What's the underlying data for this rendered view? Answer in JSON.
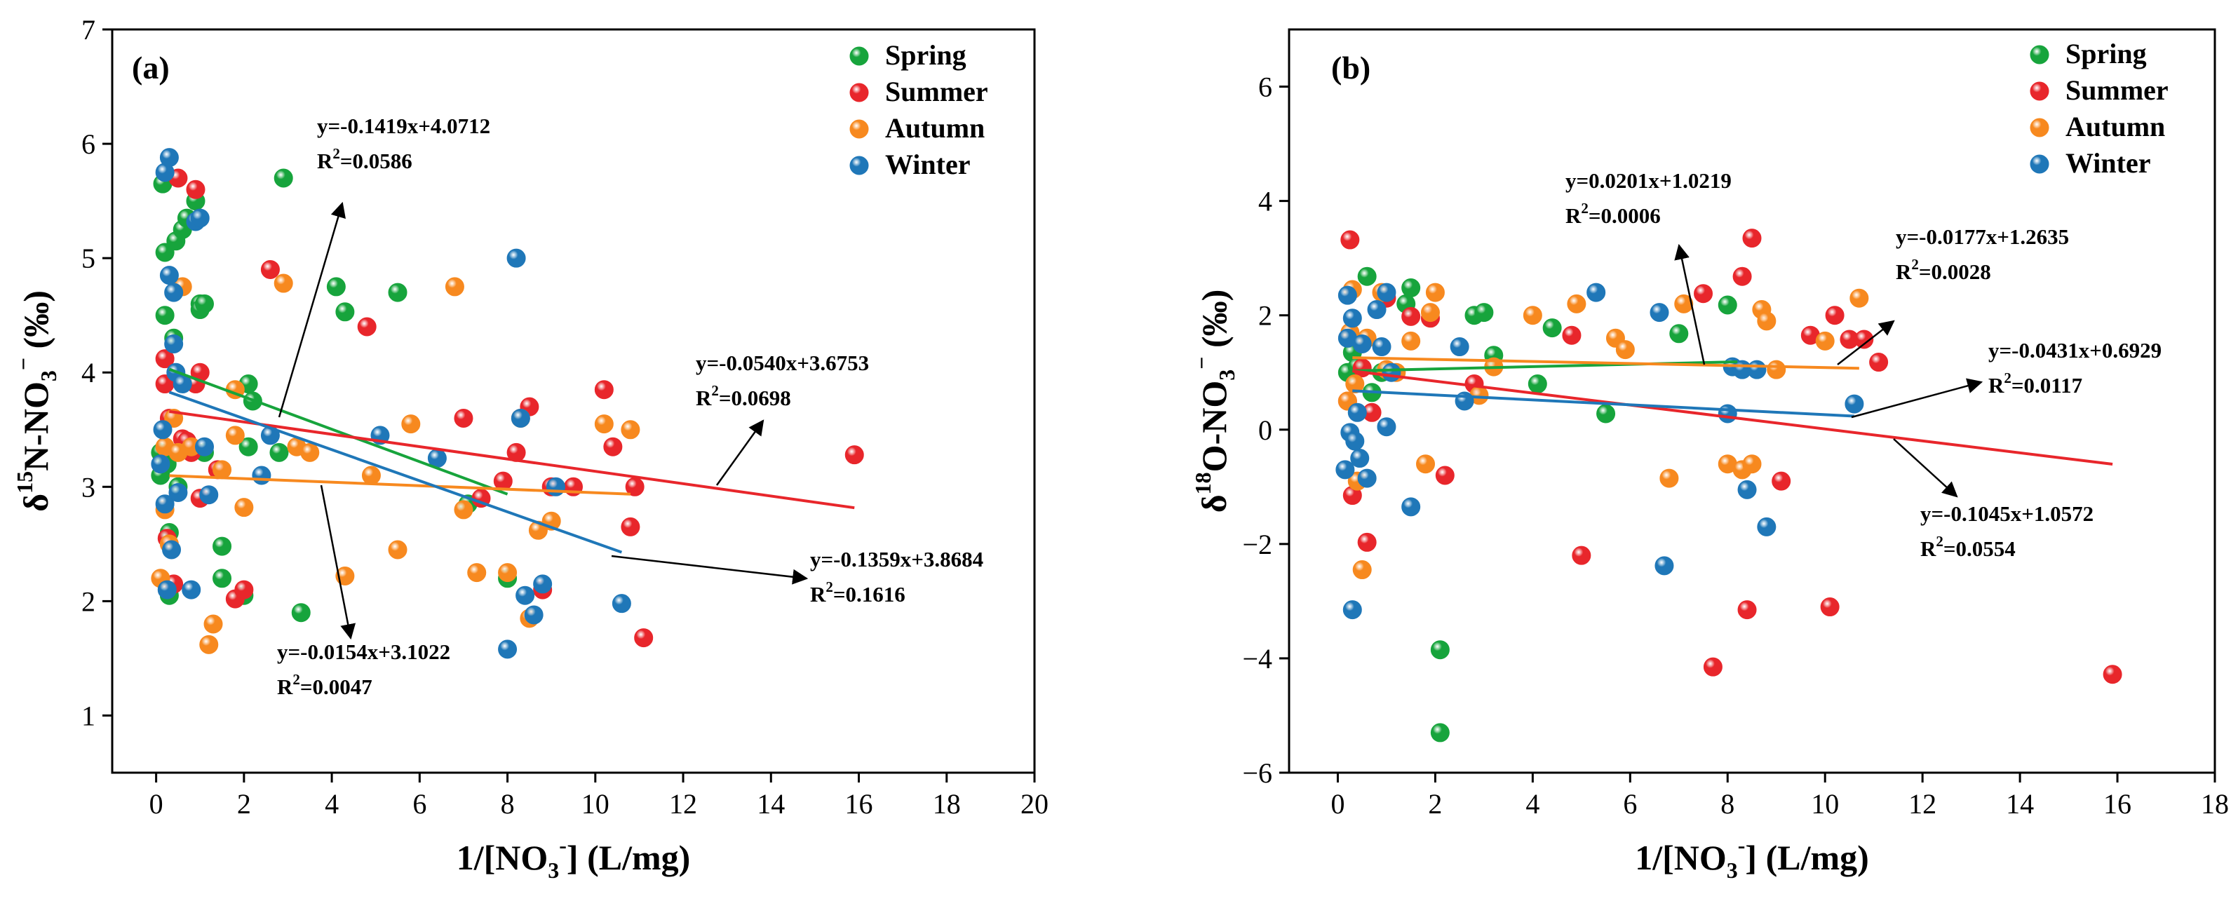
{
  "figure": {
    "title": ""
  },
  "chart_data": [
    {
      "type": "scatter",
      "panel_label": "(a)",
      "xlabel": {
        "prefix": "1/[NO",
        "sub": "3",
        "sup": "-",
        "suffix": "] (L/mg)"
      },
      "ylabel": {
        "delta": "δ",
        "sup": "15",
        "rest": "N-NO",
        "sub": "3",
        "sup2": "−",
        "unit": " (‰)"
      },
      "xlim": [
        -1,
        20
      ],
      "ylim": [
        0.5,
        7
      ],
      "xticks": [
        0,
        2,
        4,
        6,
        8,
        10,
        12,
        14,
        16,
        18,
        20
      ],
      "yticks": [
        1,
        2,
        3,
        4,
        5,
        6,
        7
      ],
      "legend": {
        "position": "top-right",
        "entries": [
          {
            "name": "Spring",
            "color": "#17a43c"
          },
          {
            "name": "Summer",
            "color": "#e8262b"
          },
          {
            "name": "Autumn",
            "color": "#f7891f"
          },
          {
            "name": "Winter",
            "color": "#1f77b8"
          }
        ]
      },
      "series": [
        {
          "name": "Spring",
          "color": "#17a43c",
          "x": [
            0.1,
            0.1,
            0.15,
            0.2,
            0.2,
            0.25,
            0.3,
            0.3,
            0.4,
            0.45,
            0.5,
            0.6,
            0.7,
            0.9,
            1.0,
            1.0,
            1.1,
            1.1,
            1.5,
            1.5,
            2.0,
            2.1,
            2.1,
            2.2,
            2.8,
            2.9,
            3.3,
            4.1,
            4.3,
            5.5,
            7.1,
            8.0
          ],
          "y": [
            3.3,
            3.1,
            5.65,
            4.5,
            5.05,
            3.2,
            2.6,
            2.05,
            4.3,
            5.15,
            3.0,
            5.25,
            5.35,
            5.5,
            4.6,
            4.55,
            4.6,
            3.3,
            2.2,
            2.48,
            2.05,
            3.35,
            3.9,
            3.75,
            3.3,
            5.7,
            1.9,
            4.75,
            4.53,
            4.7,
            2.85,
            2.2
          ],
          "trendline": {
            "x": [
              0.3,
              8.0
            ],
            "equation": "y=-0.1419x+4.0712",
            "r2": "0.0586"
          }
        },
        {
          "name": "Summer",
          "color": "#e8262b",
          "x": [
            0.2,
            0.2,
            0.25,
            0.3,
            0.4,
            0.5,
            0.6,
            0.7,
            0.8,
            0.9,
            0.9,
            1.0,
            1.0,
            1.4,
            1.8,
            2.0,
            2.6,
            4.8,
            7.0,
            7.4,
            7.9,
            8.2,
            8.5,
            8.8,
            9.0,
            9.5,
            10.2,
            10.4,
            10.8,
            10.9,
            11.1,
            15.9
          ],
          "y": [
            4.12,
            3.9,
            2.55,
            3.6,
            2.15,
            5.7,
            3.42,
            3.4,
            3.3,
            5.6,
            3.9,
            4.0,
            2.9,
            3.15,
            2.02,
            2.1,
            4.9,
            4.4,
            3.6,
            2.9,
            3.05,
            3.3,
            3.7,
            2.1,
            3.0,
            3.0,
            3.85,
            3.35,
            2.65,
            3.0,
            1.68,
            3.28
          ],
          "trendline": {
            "x": [
              0.3,
              15.9
            ],
            "equation": "y=-0.0540x+3.6753",
            "r2": "0.0698"
          }
        },
        {
          "name": "Autumn",
          "color": "#f7891f",
          "x": [
            0.1,
            0.2,
            0.2,
            0.3,
            0.4,
            0.5,
            0.6,
            0.8,
            1.2,
            1.3,
            1.5,
            1.8,
            1.8,
            2.0,
            2.9,
            3.2,
            3.5,
            4.3,
            4.9,
            5.5,
            5.8,
            6.8,
            7.0,
            7.3,
            8.0,
            8.3,
            8.5,
            8.7,
            9.0,
            10.2,
            10.8
          ],
          "y": [
            2.2,
            2.8,
            3.35,
            2.5,
            3.6,
            3.3,
            4.75,
            3.35,
            1.62,
            1.8,
            3.15,
            3.45,
            3.85,
            2.82,
            4.78,
            3.35,
            3.3,
            2.22,
            3.1,
            2.45,
            3.55,
            4.75,
            2.8,
            2.25,
            2.25,
            3.6,
            1.85,
            2.62,
            2.7,
            3.55,
            3.5
          ],
          "trendline": {
            "x": [
              0.3,
              10.8
            ],
            "equation": "y=-0.0154x+3.1022",
            "r2": "0.0047"
          }
        },
        {
          "name": "Winter",
          "color": "#1f77b8",
          "x": [
            0.1,
            0.15,
            0.2,
            0.2,
            0.25,
            0.3,
            0.3,
            0.35,
            0.4,
            0.4,
            0.45,
            0.5,
            0.6,
            0.8,
            0.9,
            1.0,
            1.1,
            1.2,
            2.4,
            2.6,
            5.1,
            6.4,
            8.0,
            8.2,
            8.3,
            8.4,
            8.6,
            8.8,
            9.1,
            10.6
          ],
          "y": [
            3.2,
            3.5,
            5.75,
            2.85,
            2.1,
            5.88,
            4.85,
            2.45,
            4.25,
            4.7,
            4.0,
            2.95,
            3.9,
            2.1,
            5.32,
            5.35,
            3.35,
            2.93,
            3.1,
            3.45,
            3.45,
            3.25,
            1.58,
            5.0,
            3.6,
            2.05,
            1.88,
            2.15,
            3.0,
            1.98
          ],
          "trendline": {
            "x": [
              0.3,
              10.6
            ],
            "equation": "y=-0.1359x+3.8684",
            "r2": "0.1616"
          }
        }
      ]
    },
    {
      "type": "scatter",
      "panel_label": "(b)",
      "xlabel": {
        "prefix": "1/[NO",
        "sub": "3",
        "sup": "-",
        "suffix": "] (L/mg)"
      },
      "ylabel": {
        "delta": "δ",
        "sup": "18",
        "rest": "O-NO",
        "sub": "3",
        "sup2": "−",
        "unit": " (‰)"
      },
      "xlim": [
        -1,
        18
      ],
      "ylim": [
        -6,
        7
      ],
      "xticks": [
        0,
        2,
        4,
        6,
        8,
        10,
        12,
        14,
        16,
        18
      ],
      "yticks": [
        -6,
        -4,
        -2,
        0,
        2,
        4,
        6
      ],
      "legend": {
        "position": "top-right",
        "entries": [
          {
            "name": "Spring",
            "color": "#17a43c"
          },
          {
            "name": "Summer",
            "color": "#e8262b"
          },
          {
            "name": "Autumn",
            "color": "#f7891f"
          },
          {
            "name": "Winter",
            "color": "#1f77b8"
          }
        ]
      },
      "series": [
        {
          "name": "Spring",
          "color": "#17a43c",
          "x": [
            0.2,
            0.3,
            0.4,
            0.6,
            0.7,
            0.9,
            1.4,
            1.5,
            2.1,
            2.1,
            2.8,
            3.0,
            3.2,
            4.1,
            4.4,
            5.5,
            7.0,
            8.0
          ],
          "y": [
            1.0,
            1.35,
            1.1,
            2.68,
            0.65,
            1.0,
            2.2,
            2.48,
            -3.85,
            -5.3,
            2.0,
            2.05,
            1.3,
            0.8,
            1.78,
            0.28,
            1.68,
            2.18
          ],
          "trendline": {
            "x": [
              0.3,
              8.2
            ],
            "equation": "y=0.0201x+1.0219",
            "r2": "0.0006"
          }
        },
        {
          "name": "Summer",
          "color": "#e8262b",
          "x": [
            0.2,
            0.25,
            0.3,
            0.5,
            0.6,
            0.7,
            1.0,
            1.5,
            1.9,
            2.2,
            2.8,
            4.8,
            5.0,
            7.5,
            7.7,
            8.3,
            8.4,
            8.5,
            9.1,
            9.7,
            10.1,
            10.2,
            10.5,
            10.8,
            11.1,
            15.9
          ],
          "y": [
            0.5,
            3.32,
            -1.15,
            1.08,
            -1.97,
            0.3,
            2.3,
            1.98,
            1.95,
            -0.8,
            0.8,
            1.65,
            -2.2,
            2.38,
            -4.15,
            2.68,
            -3.15,
            3.35,
            -0.9,
            1.65,
            -3.1,
            2.0,
            1.58,
            1.58,
            1.18,
            -4.28
          ],
          "trendline": {
            "x": [
              0.3,
              15.9
            ],
            "equation": "y=-0.1045x+1.0572",
            "r2": "0.0554"
          }
        },
        {
          "name": "Autumn",
          "color": "#f7891f",
          "x": [
            0.2,
            0.25,
            0.3,
            0.35,
            0.4,
            0.5,
            0.6,
            0.9,
            1.0,
            1.2,
            1.5,
            1.8,
            1.9,
            2.0,
            2.9,
            3.2,
            4.0,
            4.9,
            5.7,
            5.9,
            6.8,
            7.1,
            8.0,
            8.3,
            8.5,
            8.7,
            8.8,
            9.0,
            10.0,
            10.7
          ],
          "y": [
            0.5,
            1.7,
            2.45,
            0.8,
            -0.9,
            -2.45,
            1.6,
            2.4,
            1.05,
            1.0,
            1.55,
            -0.6,
            2.05,
            2.4,
            0.6,
            1.1,
            2.0,
            2.2,
            1.6,
            1.4,
            -0.85,
            2.2,
            -0.6,
            -0.7,
            -0.6,
            2.1,
            1.9,
            1.05,
            1.55,
            2.3
          ],
          "trendline": {
            "x": [
              0.3,
              10.7
            ],
            "equation": "y=-0.0177x+1.2635",
            "r2": "0.0028"
          }
        },
        {
          "name": "Winter",
          "color": "#1f77b8",
          "x": [
            0.15,
            0.2,
            0.2,
            0.25,
            0.3,
            0.3,
            0.35,
            0.4,
            0.45,
            0.5,
            0.6,
            0.8,
            0.9,
            1.0,
            1.0,
            1.1,
            1.5,
            2.5,
            2.6,
            5.3,
            6.6,
            6.7,
            8.0,
            8.1,
            8.3,
            8.4,
            8.6,
            8.8,
            10.6
          ],
          "y": [
            -0.7,
            2.35,
            1.6,
            -0.05,
            -3.15,
            1.95,
            -0.2,
            0.3,
            -0.5,
            1.5,
            -0.85,
            2.1,
            1.45,
            2.4,
            0.05,
            1.0,
            -1.35,
            1.45,
            0.5,
            2.4,
            2.05,
            -2.38,
            0.28,
            1.1,
            1.05,
            -1.05,
            1.05,
            -1.7,
            0.45
          ],
          "trendline": {
            "x": [
              0.3,
              10.6
            ],
            "equation": "y=-0.0431x+0.6929",
            "r2": "0.0117"
          }
        }
      ]
    }
  ]
}
